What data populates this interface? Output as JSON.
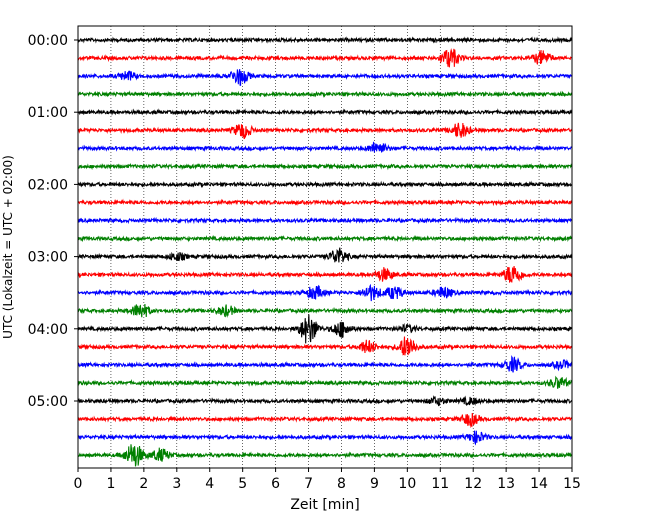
{
  "chart_data": {
    "type": "line",
    "title": "",
    "xlabel": "Zeit  [min]",
    "ylabel": "UTC (Lokalzeit = UTC + 02:00)",
    "xlim": [
      0,
      15
    ],
    "xticks": [
      "0",
      "1",
      "2",
      "3",
      "4",
      "5",
      "6",
      "7",
      "8",
      "9",
      "10",
      "11",
      "12",
      "13",
      "14",
      "15"
    ],
    "ytick_labels": [
      "00:00",
      "01:00",
      "02:00",
      "03:00",
      "04:00",
      "05:00"
    ],
    "ytick_rows": [
      0,
      4,
      8,
      12,
      16,
      20
    ],
    "grid": "vertical dotted at each minute",
    "trace_colors": [
      "#000000",
      "#ff0000",
      "#0000ff",
      "#008000"
    ],
    "traces": [
      {
        "row": 0,
        "color": "#000000",
        "events": []
      },
      {
        "row": 1,
        "color": "#ff0000",
        "events": [
          [
            11.3,
            1.6
          ],
          [
            14.1,
            1.1
          ]
        ]
      },
      {
        "row": 2,
        "color": "#0000ff",
        "events": [
          [
            1.5,
            0.7
          ],
          [
            4.9,
            1.4
          ]
        ]
      },
      {
        "row": 3,
        "color": "#008000",
        "events": []
      },
      {
        "row": 4,
        "color": "#000000",
        "events": []
      },
      {
        "row": 5,
        "color": "#ff0000",
        "events": [
          [
            5.0,
            1.2
          ],
          [
            11.6,
            1.2
          ]
        ]
      },
      {
        "row": 6,
        "color": "#0000ff",
        "events": [
          [
            9.1,
            1.0
          ]
        ]
      },
      {
        "row": 7,
        "color": "#008000",
        "events": []
      },
      {
        "row": 8,
        "color": "#000000",
        "events": []
      },
      {
        "row": 9,
        "color": "#ff0000",
        "events": []
      },
      {
        "row": 10,
        "color": "#0000ff",
        "events": []
      },
      {
        "row": 11,
        "color": "#008000",
        "events": []
      },
      {
        "row": 12,
        "color": "#000000",
        "events": [
          [
            3.0,
            0.6
          ],
          [
            7.9,
            1.3
          ]
        ]
      },
      {
        "row": 13,
        "color": "#ff0000",
        "events": [
          [
            9.3,
            1.0
          ],
          [
            13.2,
            1.6
          ]
        ]
      },
      {
        "row": 14,
        "color": "#0000ff",
        "events": [
          [
            7.2,
            1.0
          ],
          [
            8.9,
            1.2
          ],
          [
            9.6,
            1.0
          ],
          [
            11.1,
            0.9
          ]
        ]
      },
      {
        "row": 15,
        "color": "#008000",
        "events": [
          [
            1.9,
            1.2
          ],
          [
            4.5,
            0.8
          ]
        ]
      },
      {
        "row": 16,
        "color": "#000000",
        "events": [
          [
            7.0,
            2.4
          ],
          [
            8.0,
            1.3
          ],
          [
            10.0,
            0.5
          ]
        ]
      },
      {
        "row": 17,
        "color": "#ff0000",
        "events": [
          [
            8.8,
            1.0
          ],
          [
            10.0,
            1.8
          ]
        ]
      },
      {
        "row": 18,
        "color": "#0000ff",
        "events": [
          [
            13.2,
            1.1
          ],
          [
            14.7,
            0.6
          ]
        ]
      },
      {
        "row": 19,
        "color": "#008000",
        "events": [
          [
            14.6,
            0.9
          ]
        ]
      },
      {
        "row": 20,
        "color": "#000000",
        "events": [
          [
            10.9,
            0.6
          ],
          [
            11.9,
            0.5
          ]
        ]
      },
      {
        "row": 21,
        "color": "#ff0000",
        "events": [
          [
            11.9,
            1.0
          ]
        ]
      },
      {
        "row": 22,
        "color": "#0000ff",
        "events": [
          [
            12.1,
            0.9
          ]
        ]
      },
      {
        "row": 23,
        "color": "#008000",
        "events": [
          [
            1.7,
            2.0
          ],
          [
            2.5,
            1.0
          ]
        ]
      }
    ]
  }
}
